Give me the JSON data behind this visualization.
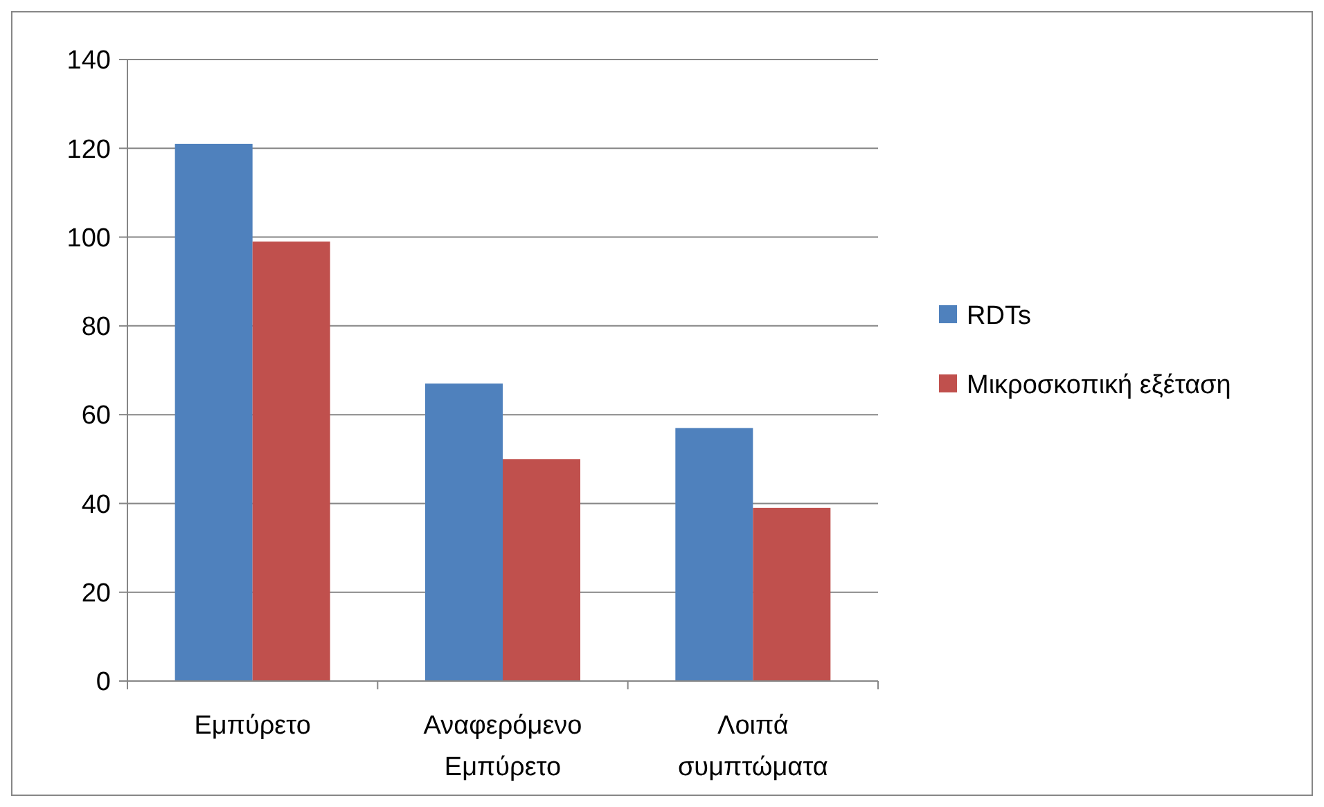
{
  "chart_data": {
    "type": "bar",
    "categories": [
      "Εμπύρετο",
      "Αναφερόμενο Εμπύρετο",
      "Λοιπά συμπτώματα"
    ],
    "series": [
      {
        "name": "RDTs",
        "color": "#4f81bd",
        "values": [
          121,
          67,
          57
        ]
      },
      {
        "name": "Μικροσκοπική εξέταση",
        "color": "#c0504d",
        "values": [
          99,
          50,
          39
        ]
      }
    ],
    "ylim": [
      0,
      140
    ],
    "yticks": [
      0,
      20,
      40,
      60,
      80,
      100,
      120,
      140
    ],
    "grid": "y",
    "legend": "right"
  }
}
